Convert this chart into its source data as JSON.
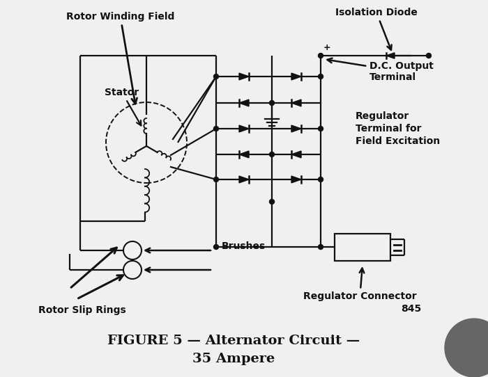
{
  "bg_color": "#f0f0f0",
  "line_color": "#111111",
  "title_line1": "FIGURE 5 — Alternator Circuit —",
  "title_line2": "35 Ampere",
  "labels": {
    "rotor_winding": "Rotor Winding Field",
    "stator": "Stator",
    "isolation_diode": "Isolation Diode",
    "dc_output": "D.C. Output\nTerminal",
    "regulator_terminal": "Regulator\nTerminal for\nField Excitation",
    "brushes": "Brushes",
    "rotor_slip": "Rotor Slip Rings",
    "regulator_connector": "Regulator Connector",
    "reg_num": "845"
  }
}
